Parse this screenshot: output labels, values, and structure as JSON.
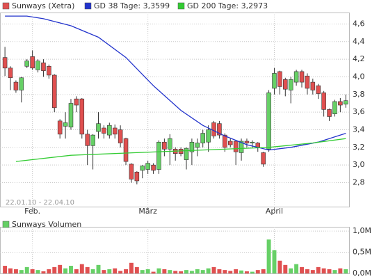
{
  "chart_data": {
    "type": "candlestick",
    "legend": [
      {
        "name": "Sunways (Xetra)",
        "color": "#e05050"
      }
    ],
    "date_range": "22.01.10 - 22.04.10",
    "up_color": "#66d066",
    "down_color": "#e05050",
    "candles": [
      {
        "open": 4.22,
        "high": 4.34,
        "low": 4.01,
        "close": 4.1
      },
      {
        "open": 4.1,
        "high": 4.12,
        "low": 3.85,
        "close": 3.99
      },
      {
        "open": 3.94,
        "high": 3.96,
        "low": 3.82,
        "close": 3.85
      },
      {
        "open": 3.85,
        "high": 4.0,
        "low": 3.71,
        "close": 3.99
      },
      {
        "open": 4.12,
        "high": 4.2,
        "low": 4.1,
        "close": 4.18
      },
      {
        "open": 4.23,
        "high": 4.3,
        "low": 4.08,
        "close": 4.1
      },
      {
        "open": 4.08,
        "high": 4.2,
        "low": 4.05,
        "close": 4.18
      },
      {
        "open": 4.16,
        "high": 4.2,
        "low": 4.0,
        "close": 4.07
      },
      {
        "open": 4.12,
        "high": 4.14,
        "low": 3.98,
        "close": 4.02
      },
      {
        "open": 4.02,
        "high": 4.03,
        "low": 3.6,
        "close": 3.65
      },
      {
        "open": 3.5,
        "high": 3.52,
        "low": 3.3,
        "close": 3.35
      },
      {
        "open": 3.44,
        "high": 3.6,
        "low": 3.3,
        "close": 3.48
      },
      {
        "open": 3.43,
        "high": 3.75,
        "low": 3.4,
        "close": 3.7
      },
      {
        "open": 3.75,
        "high": 3.78,
        "low": 3.6,
        "close": 3.68
      },
      {
        "open": 3.75,
        "high": 3.76,
        "low": 3.3,
        "close": 3.35
      },
      {
        "open": 3.35,
        "high": 3.4,
        "low": 3.0,
        "close": 3.22
      },
      {
        "open": 3.22,
        "high": 3.35,
        "low": 2.95,
        "close": 3.34
      },
      {
        "open": 3.38,
        "high": 3.6,
        "low": 3.3,
        "close": 3.47
      },
      {
        "open": 3.42,
        "high": 3.45,
        "low": 3.3,
        "close": 3.36
      },
      {
        "open": 3.34,
        "high": 3.48,
        "low": 3.3,
        "close": 3.45
      },
      {
        "open": 3.42,
        "high": 3.46,
        "low": 3.3,
        "close": 3.35
      },
      {
        "open": 3.4,
        "high": 3.45,
        "low": 3.2,
        "close": 3.25
      },
      {
        "open": 3.3,
        "high": 3.31,
        "low": 3.0,
        "close": 3.04
      },
      {
        "open": 3.01,
        "high": 3.02,
        "low": 2.8,
        "close": 2.84
      },
      {
        "open": 2.92,
        "high": 2.93,
        "low": 2.78,
        "close": 2.82
      },
      {
        "open": 2.94,
        "high": 3.0,
        "low": 2.85,
        "close": 2.99
      },
      {
        "open": 2.95,
        "high": 3.05,
        "low": 2.9,
        "close": 3.02
      },
      {
        "open": 3.0,
        "high": 3.02,
        "low": 2.9,
        "close": 2.94
      },
      {
        "open": 2.95,
        "high": 3.28,
        "low": 2.9,
        "close": 3.26
      },
      {
        "open": 3.26,
        "high": 3.3,
        "low": 3.1,
        "close": 3.18
      },
      {
        "open": 3.18,
        "high": 3.35,
        "low": 3.0,
        "close": 3.3
      },
      {
        "open": 3.18,
        "high": 3.2,
        "low": 3.05,
        "close": 3.13
      },
      {
        "open": 3.18,
        "high": 3.2,
        "low": 3.1,
        "close": 3.13
      },
      {
        "open": 3.06,
        "high": 3.2,
        "low": 2.95,
        "close": 3.19
      },
      {
        "open": 3.15,
        "high": 3.3,
        "low": 3.0,
        "close": 3.26
      },
      {
        "open": 3.2,
        "high": 3.3,
        "low": 3.1,
        "close": 3.25
      },
      {
        "open": 3.25,
        "high": 3.4,
        "low": 3.2,
        "close": 3.36
      },
      {
        "open": 3.26,
        "high": 3.45,
        "low": 3.15,
        "close": 3.4
      },
      {
        "open": 3.48,
        "high": 3.5,
        "low": 3.3,
        "close": 3.33
      },
      {
        "open": 3.47,
        "high": 3.5,
        "low": 3.3,
        "close": 3.34
      },
      {
        "open": 3.34,
        "high": 3.36,
        "low": 3.15,
        "close": 3.2
      },
      {
        "open": 3.27,
        "high": 3.3,
        "low": 3.2,
        "close": 3.23
      },
      {
        "open": 3.27,
        "high": 3.28,
        "low": 3.0,
        "close": 3.15
      },
      {
        "open": 3.14,
        "high": 3.3,
        "low": 3.05,
        "close": 3.27
      },
      {
        "open": 3.27,
        "high": 3.3,
        "low": 3.2,
        "close": 3.25
      },
      {
        "open": 3.25,
        "high": 3.28,
        "low": 3.2,
        "close": 3.26
      },
      {
        "open": 3.25,
        "high": 3.26,
        "low": 3.15,
        "close": 3.2
      },
      {
        "open": 3.14,
        "high": 3.15,
        "low": 2.98,
        "close": 3.01
      },
      {
        "open": 3.18,
        "high": 3.85,
        "low": 3.15,
        "close": 3.82
      },
      {
        "open": 3.87,
        "high": 4.1,
        "low": 3.8,
        "close": 4.04
      },
      {
        "open": 4.06,
        "high": 4.07,
        "low": 3.8,
        "close": 3.89
      },
      {
        "open": 3.97,
        "high": 3.99,
        "low": 3.78,
        "close": 3.86
      },
      {
        "open": 3.85,
        "high": 4.0,
        "low": 3.7,
        "close": 3.97
      },
      {
        "open": 3.94,
        "high": 4.08,
        "low": 3.9,
        "close": 4.06
      },
      {
        "open": 4.06,
        "high": 4.08,
        "low": 3.88,
        "close": 3.94
      },
      {
        "open": 4.01,
        "high": 4.04,
        "low": 3.8,
        "close": 3.87
      },
      {
        "open": 3.94,
        "high": 3.98,
        "low": 3.8,
        "close": 3.85
      },
      {
        "open": 3.9,
        "high": 3.92,
        "low": 3.75,
        "close": 3.81
      },
      {
        "open": 3.82,
        "high": 3.84,
        "low": 3.55,
        "close": 3.63
      },
      {
        "open": 3.63,
        "high": 3.64,
        "low": 3.5,
        "close": 3.55
      },
      {
        "open": 3.58,
        "high": 3.74,
        "low": 3.55,
        "close": 3.72
      },
      {
        "open": 3.72,
        "high": 3.76,
        "low": 3.6,
        "close": 3.68
      },
      {
        "open": 3.69,
        "high": 3.8,
        "low": 3.65,
        "close": 3.73
      }
    ],
    "lines": [
      {
        "name": "GD 38 Tage: 3,3599",
        "color": "#2233cc",
        "x": [
          0,
          4,
          7,
          12,
          17,
          22,
          27,
          32,
          36,
          40,
          44,
          48,
          52,
          57,
          62
        ],
        "values": [
          4.69,
          4.69,
          4.66,
          4.58,
          4.45,
          4.22,
          3.9,
          3.62,
          3.45,
          3.33,
          3.23,
          3.17,
          3.2,
          3.26,
          3.36
        ]
      },
      {
        "name": "GD 200 Tage: 3,2973",
        "color": "#33cc33",
        "x": [
          2,
          12,
          24,
          36,
          48,
          56,
          62
        ],
        "values": [
          3.04,
          3.11,
          3.14,
          3.17,
          3.2,
          3.25,
          3.3
        ]
      }
    ],
    "xlim": [
      -0.9,
      62.6
    ],
    "xticks": [
      {
        "value": 5,
        "label": "Feb."
      },
      {
        "value": 26,
        "label": "März"
      },
      {
        "value": 49,
        "label": "April"
      }
    ],
    "ylim": [
      2.52,
      4.73
    ],
    "yticks": [
      {
        "value": 2.8,
        "label": "2,8"
      },
      {
        "value": 3.0,
        "label": "3,0"
      },
      {
        "value": 3.2,
        "label": "3,2"
      },
      {
        "value": 3.4,
        "label": "3,4"
      },
      {
        "value": 3.6,
        "label": "3,6"
      },
      {
        "value": 3.8,
        "label": "3,8"
      },
      {
        "value": 4.0,
        "label": "4,0"
      },
      {
        "value": 4.2,
        "label": "4,2"
      },
      {
        "value": 4.4,
        "label": "4,4"
      },
      {
        "value": 4.6,
        "label": "4,6"
      }
    ],
    "volume": {
      "name": "Sunways Volumen",
      "color": "#66d066",
      "values": [
        0.18,
        0.12,
        0.1,
        0.08,
        0.15,
        0.1,
        0.08,
        0.05,
        0.1,
        0.15,
        0.2,
        0.12,
        0.18,
        0.1,
        0.22,
        0.15,
        0.1,
        0.2,
        0.08,
        0.1,
        0.12,
        0.06,
        0.1,
        0.25,
        0.15,
        0.08,
        0.1,
        0.04,
        0.12,
        0.1,
        0.08,
        0.06,
        0.05,
        0.08,
        0.06,
        0.1,
        0.08,
        0.12,
        0.15,
        0.1,
        0.08,
        0.06,
        0.1,
        0.07,
        0.05,
        0.04,
        0.08,
        0.1,
        0.8,
        0.55,
        0.3,
        0.2,
        0.12,
        0.22,
        0.15,
        0.1,
        0.08,
        0.15,
        0.12,
        0.1,
        0.08,
        0.12,
        0.1
      ],
      "ylim": [
        0,
        1.1
      ],
      "yticks": [
        {
          "value": 0,
          "label": "0,0M"
        },
        {
          "value": 0.5,
          "label": "0,5M"
        },
        {
          "value": 1.0,
          "label": "1,0M"
        }
      ]
    }
  }
}
